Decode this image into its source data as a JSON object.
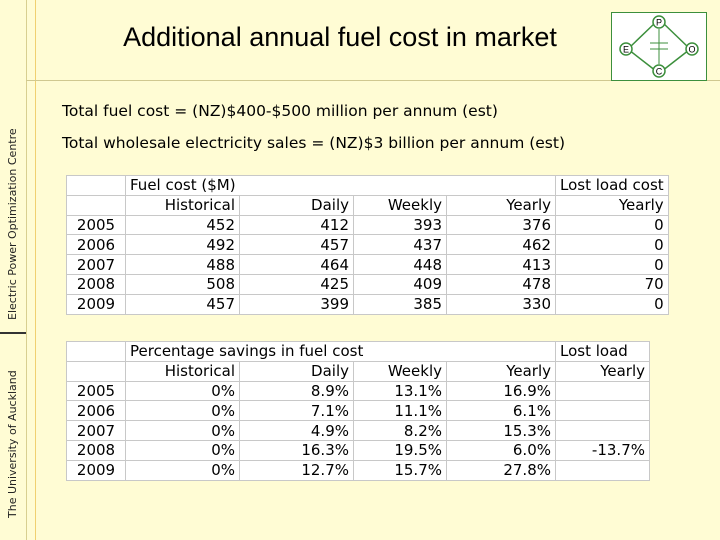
{
  "sidebar": {
    "upper_text": "Electric Power Optimization Centre",
    "lower_text": "The University of Auckland"
  },
  "title": "Additional annual fuel cost in market",
  "logo": {
    "top": "P",
    "left": "E",
    "right": "O",
    "bottom": "C"
  },
  "info": {
    "line1": "Total fuel cost = (NZ)$400-$500 million per annum (est)",
    "line2": "Total wholesale electricity sales = (NZ)$3 billion per annum (est)"
  },
  "table1": {
    "group_left": "Fuel cost ($M)",
    "group_right": "Lost load cost",
    "columns": [
      "Historical",
      "Daily",
      "Weekly",
      "Yearly",
      "Yearly"
    ],
    "rows": [
      {
        "year": "2005",
        "values": [
          "452",
          "412",
          "393",
          "376",
          "0"
        ]
      },
      {
        "year": "2006",
        "values": [
          "492",
          "457",
          "437",
          "462",
          "0"
        ]
      },
      {
        "year": "2007",
        "values": [
          "488",
          "464",
          "448",
          "413",
          "0"
        ]
      },
      {
        "year": "2008",
        "values": [
          "508",
          "425",
          "409",
          "478",
          "70"
        ]
      },
      {
        "year": "2009",
        "values": [
          "457",
          "399",
          "385",
          "330",
          "0"
        ]
      }
    ]
  },
  "table2": {
    "group_left": "Percentage savings in fuel cost",
    "group_right": "Lost load",
    "columns": [
      "Historical",
      "Daily",
      "Weekly",
      "Yearly",
      "Yearly"
    ],
    "rows": [
      {
        "year": "2005",
        "values": [
          "0%",
          "8.9%",
          "13.1%",
          "16.9%",
          ""
        ]
      },
      {
        "year": "2006",
        "values": [
          "0%",
          "7.1%",
          "11.1%",
          "6.1%",
          ""
        ]
      },
      {
        "year": "2007",
        "values": [
          "0%",
          "4.9%",
          "8.2%",
          "15.3%",
          ""
        ]
      },
      {
        "year": "2008",
        "values": [
          "0%",
          "16.3%",
          "19.5%",
          "6.0%",
          "-13.7%"
        ]
      },
      {
        "year": "2009",
        "values": [
          "0%",
          "12.7%",
          "15.7%",
          "27.8%",
          ""
        ]
      }
    ]
  }
}
